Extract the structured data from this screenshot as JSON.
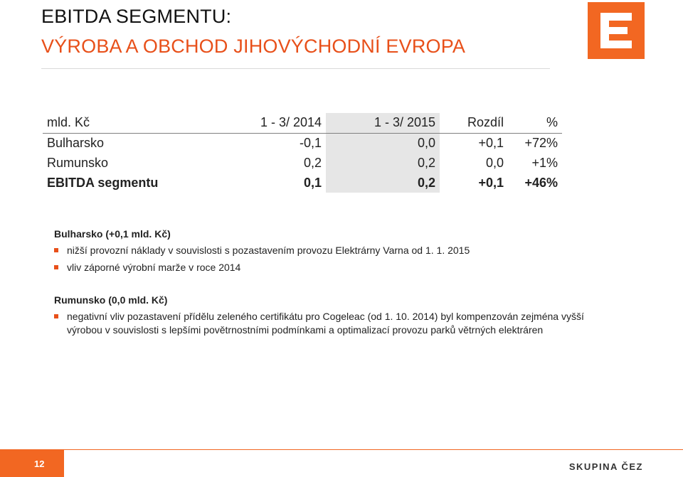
{
  "title": {
    "line1": "EBITDA SEGMENTU:",
    "line2": "VÝROBA A OBCHOD JIHOVÝCHODNÍ EVROPA"
  },
  "colors": {
    "accent": "#e8501a",
    "logo": "#f26722",
    "highlight_column": "#e6e6e6"
  },
  "logo": {
    "icon": "cez-logo-icon"
  },
  "table": {
    "headers": [
      "mld. Kč",
      "1 - 3/ 2014",
      "1 - 3/ 2015",
      "Rozdíl",
      "%"
    ],
    "rows": [
      [
        "Bulharsko",
        "-0,1",
        "0,0",
        "+0,1",
        "+72%"
      ],
      [
        "Rumunsko",
        "0,2",
        "0,2",
        "0,0",
        "+1%"
      ],
      [
        "EBITDA segmentu",
        "0,1",
        "0,2",
        "+0,1",
        "+46%"
      ]
    ]
  },
  "sections": {
    "bulharsko": {
      "heading": "Bulharsko (+0,1 mld. Kč)",
      "bullets": [
        "nižší provozní náklady v souvislosti s pozastavením provozu Elektrárny Varna od 1. 1. 2015",
        "vliv záporné výrobní marže v roce 2014"
      ]
    },
    "rumunsko": {
      "heading": "Rumunsko (0,0 mld. Kč)",
      "bullets": [
        "negativní vliv pozastavení přídělu zeleného certifikátu pro Cogeleac (od 1. 10. 2014) byl kompenzován zejména vyšší výrobou v souvislosti s lepšími povětrnostními podmínkami a optimalizací provozu parků větrných elektráren"
      ]
    }
  },
  "footer": {
    "page_number": "12",
    "brand": "SKUPINA ČEZ"
  }
}
